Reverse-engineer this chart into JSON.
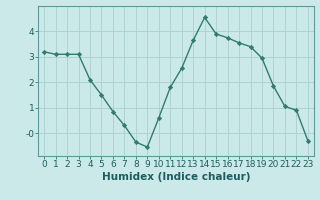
{
  "x": [
    0,
    1,
    2,
    3,
    4,
    5,
    6,
    7,
    8,
    9,
    10,
    11,
    12,
    13,
    14,
    15,
    16,
    17,
    18,
    19,
    20,
    21,
    22,
    23
  ],
  "y": [
    3.2,
    3.1,
    3.1,
    3.1,
    2.1,
    1.5,
    0.85,
    0.3,
    -0.35,
    -0.55,
    0.6,
    1.8,
    2.55,
    3.65,
    4.55,
    3.9,
    3.75,
    3.55,
    3.4,
    2.95,
    1.85,
    1.05,
    0.9,
    -0.3
  ],
  "xlabel": "Humidex (Indice chaleur)",
  "line_color": "#2e7d6e",
  "marker": "D",
  "marker_size": 2.2,
  "bg_color": "#cce9e9",
  "grid_color": "#aacfcf",
  "ylim": [
    -0.9,
    5.0
  ],
  "xlim": [
    -0.5,
    23.5
  ],
  "xlabel_fontsize": 7.5,
  "tick_fontsize": 6.5
}
